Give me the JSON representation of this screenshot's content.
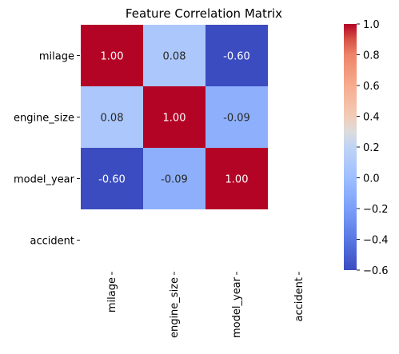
{
  "chart_data": {
    "type": "heatmap",
    "title": "Feature Correlation Matrix",
    "x_labels": [
      "milage",
      "engine_size",
      "model_year",
      "accident"
    ],
    "y_labels": [
      "milage",
      "engine_size",
      "model_year",
      "accident"
    ],
    "values": [
      [
        1.0,
        0.08,
        -0.6,
        null
      ],
      [
        0.08,
        1.0,
        -0.09,
        null
      ],
      [
        -0.6,
        -0.09,
        1.0,
        null
      ],
      [
        null,
        null,
        null,
        null
      ]
    ],
    "value_format": "0.00",
    "colormap": "coolwarm",
    "colorbar": {
      "vmin": -0.6,
      "vmax": 1.0,
      "ticks": [
        "−0.6",
        "−0.4",
        "−0.2",
        "0.0",
        "0.2",
        "0.4",
        "0.6",
        "0.8",
        "1.0"
      ]
    }
  }
}
